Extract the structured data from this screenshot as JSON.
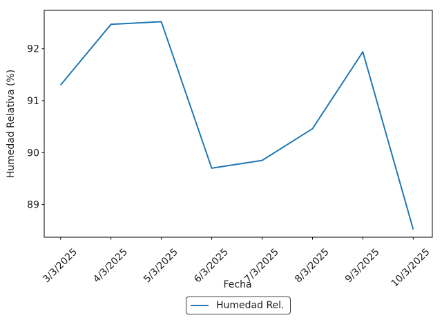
{
  "chart_data": {
    "type": "line",
    "title": "",
    "xlabel": "Fecha",
    "ylabel": "Humedad Relativa (%)",
    "categories": [
      "3/3/2025",
      "4/3/2025",
      "5/3/2025",
      "6/3/2025",
      "7/3/2025",
      "8/3/2025",
      "9/3/2025",
      "10/3/2025"
    ],
    "series": [
      {
        "name": "Humedad Rel.",
        "color": "#1f77b4",
        "values": [
          91.3,
          92.47,
          92.52,
          89.7,
          89.85,
          90.46,
          91.94,
          88.52
        ]
      }
    ],
    "yticks": [
      89,
      90,
      91,
      92
    ],
    "ylim": [
      88.37,
      92.74
    ],
    "x_tick_rotation_deg": 45,
    "grid": false,
    "legend": {
      "position": "bottom-center",
      "label": "Humedad Rel."
    }
  },
  "colors": {
    "background": "#ffffff",
    "line": "#1f77b4",
    "axis": "#000000",
    "text": "#1a1a1a",
    "legend_border": "#3c3c3c"
  }
}
